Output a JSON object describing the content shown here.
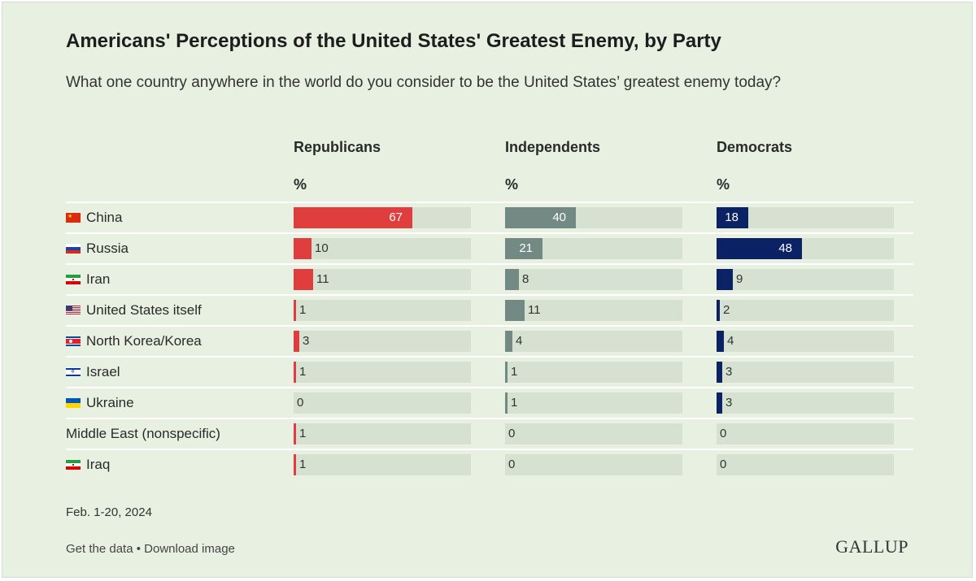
{
  "title": "Americans' Perceptions of the United States' Greatest Enemy, by Party",
  "subtitle": "What one country anywhere in the world do you consider to be the United States’ greatest enemy today?",
  "date_note": "Feb. 1-20, 2024",
  "footer": {
    "get_data": "Get the data",
    "separator": " • ",
    "download": "Download image"
  },
  "logo": "GALLUP",
  "colors": {
    "Republicans": "#e03e3e",
    "Independents": "#728a83",
    "Democrats": "#0b2265",
    "track": "#d6e1d2"
  },
  "chart_data": {
    "type": "bar",
    "orientation": "horizontal",
    "unit": "%",
    "xlim": [
      0,
      100
    ],
    "categories": [
      "China",
      "Russia",
      "Iran",
      "United States itself",
      "North Korea/Korea",
      "Israel",
      "Ukraine",
      "Middle East (nonspecific)",
      "Iraq"
    ],
    "flags": [
      "china",
      "russia",
      "iran",
      "usa",
      "north-korea",
      "israel",
      "ukraine",
      "",
      "iraq"
    ],
    "series": [
      {
        "name": "Republicans",
        "values": [
          67,
          10,
          11,
          1,
          3,
          1,
          0,
          1,
          1
        ]
      },
      {
        "name": "Independents",
        "values": [
          40,
          21,
          8,
          11,
          4,
          1,
          1,
          0,
          0
        ]
      },
      {
        "name": "Democrats",
        "values": [
          18,
          48,
          9,
          2,
          4,
          3,
          3,
          0,
          0
        ]
      }
    ]
  }
}
